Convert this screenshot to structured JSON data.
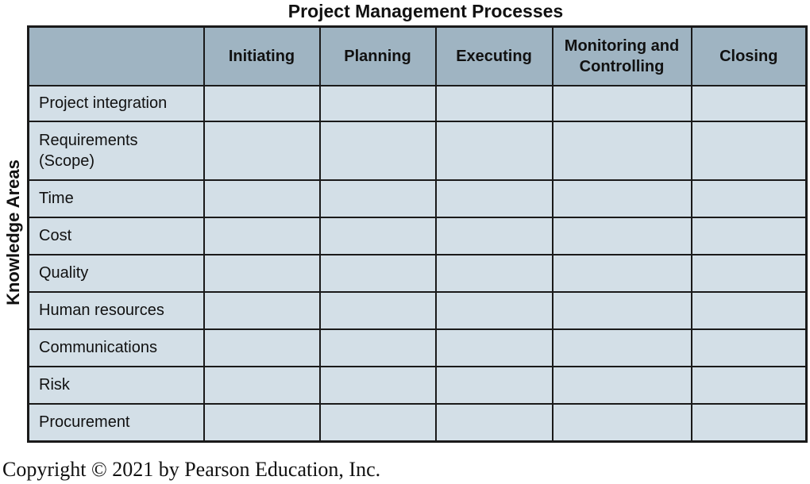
{
  "title": "Project Management Processes",
  "side_title": "Knowledge Areas",
  "columns": [
    "",
    "Initiating",
    "Planning",
    "Executing",
    "Monitoring and Controlling",
    "Closing"
  ],
  "rows": [
    "Project integration",
    "Requirements (Scope)",
    "Time",
    "Cost",
    "Quality",
    "Human resources",
    "Communications",
    "Risk",
    "Procurement"
  ],
  "copyright": "Copyright © 2021 by Pearson Education, Inc.",
  "colors": {
    "header_fill": "#9fb4c2",
    "cell_fill": "#d3dfe7",
    "border": "#1a1a1a"
  }
}
